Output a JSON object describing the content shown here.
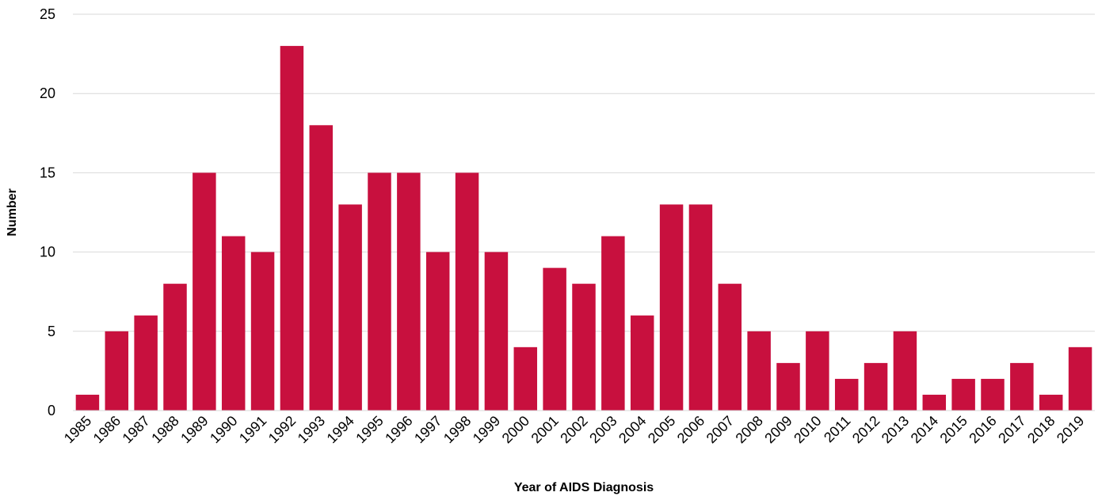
{
  "chart_data": {
    "type": "bar",
    "title": "",
    "xlabel": "Year of AIDS Diagnosis",
    "ylabel": "Number",
    "ylim": [
      0,
      25
    ],
    "yticks": [
      0,
      5,
      10,
      15,
      20,
      25
    ],
    "grid": true,
    "bar_color": "#c8103e",
    "categories": [
      "1985",
      "1986",
      "1987",
      "1988",
      "1989",
      "1990",
      "1991",
      "1992",
      "1993",
      "1994",
      "1995",
      "1996",
      "1997",
      "1998",
      "1999",
      "2000",
      "2001",
      "2002",
      "2003",
      "2004",
      "2005",
      "2006",
      "2007",
      "2008",
      "2009",
      "2010",
      "2011",
      "2012",
      "2013",
      "2014",
      "2015",
      "2016",
      "2017",
      "2018",
      "2019"
    ],
    "values": [
      1,
      5,
      6,
      8,
      15,
      11,
      10,
      23,
      18,
      13,
      15,
      15,
      10,
      15,
      10,
      4,
      9,
      8,
      11,
      6,
      13,
      13,
      8,
      5,
      3,
      5,
      2,
      3,
      5,
      1,
      2,
      2,
      3,
      1,
      4
    ]
  }
}
